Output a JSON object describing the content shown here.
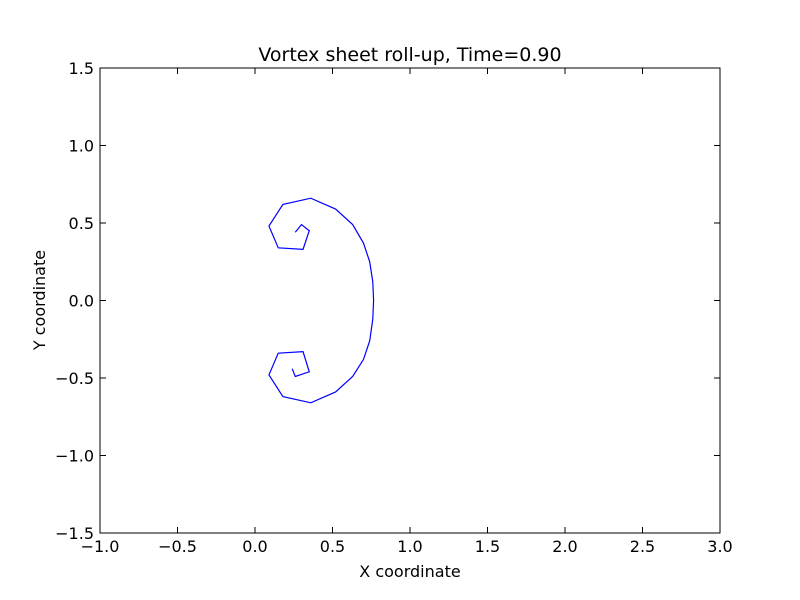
{
  "chart_data": {
    "type": "line",
    "title": "Vortex sheet roll-up, Time=0.90",
    "xlabel": "X coordinate",
    "ylabel": "Y coordinate",
    "xlim": [
      -1.0,
      3.0
    ],
    "ylim": [
      -1.5,
      1.5
    ],
    "x_ticks": [
      "−1.0",
      "−0.5",
      "0.0",
      "0.5",
      "1.0",
      "1.5",
      "2.0",
      "2.5",
      "3.0"
    ],
    "y_ticks": [
      "1.5",
      "1.0",
      "0.5",
      "0.0",
      "−0.5",
      "−1.0",
      "−1.5"
    ],
    "x_tick_values": [
      -1.0,
      -0.5,
      0.0,
      0.5,
      1.0,
      1.5,
      2.0,
      2.5,
      3.0
    ],
    "y_tick_values": [
      1.5,
      1.0,
      0.5,
      0.0,
      -0.5,
      -1.0,
      -1.5
    ],
    "grid": false,
    "series": [
      {
        "color": "#0000ff",
        "x": [
          0.26,
          0.3,
          0.35,
          0.31,
          0.15,
          0.09,
          0.18,
          0.36,
          0.52,
          0.63,
          0.7,
          0.74,
          0.76,
          0.765,
          0.76,
          0.74,
          0.7,
          0.63,
          0.52,
          0.36,
          0.18,
          0.09,
          0.15,
          0.31,
          0.35,
          0.26,
          0.24
        ],
        "y": [
          0.44,
          0.49,
          0.45,
          0.33,
          0.34,
          0.48,
          0.62,
          0.66,
          0.59,
          0.49,
          0.37,
          0.25,
          0.12,
          0.0,
          -0.12,
          -0.26,
          -0.38,
          -0.49,
          -0.59,
          -0.66,
          -0.62,
          -0.48,
          -0.34,
          -0.33,
          -0.46,
          -0.49,
          -0.44
        ]
      }
    ]
  }
}
